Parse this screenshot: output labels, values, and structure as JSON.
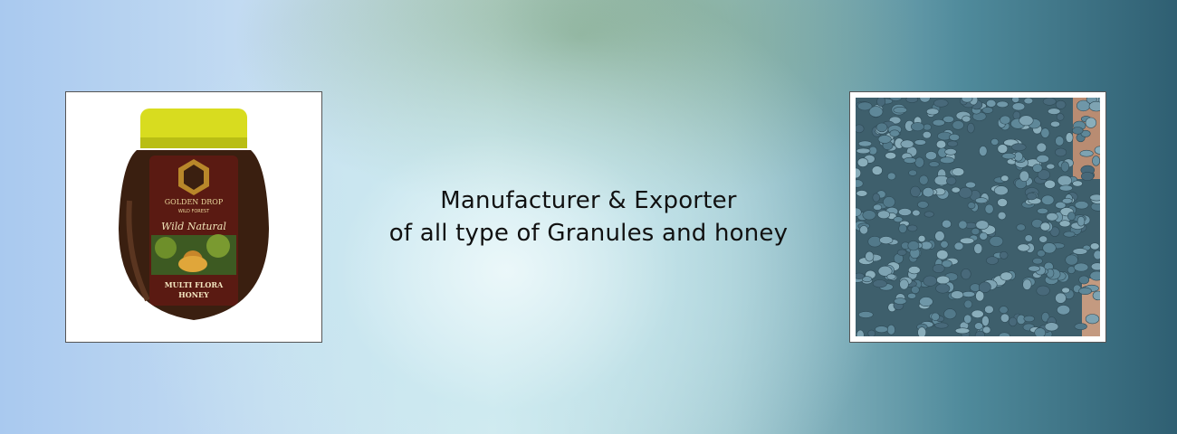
{
  "banner": {
    "headline_line1": "Manufacturer & Exporter",
    "headline_line2": "of all type of Granules and honey"
  },
  "honey_product": {
    "brand": "GOLDEN DROP",
    "sub_brand": "WILD FOREST",
    "tagline": "Wild Natural",
    "name_line1": "MULTI FLORA",
    "name_line2": "HONEY"
  },
  "colors": {
    "lid": "#d8dc1f",
    "jar": "#3a1f10",
    "granule": "#5f8899"
  }
}
